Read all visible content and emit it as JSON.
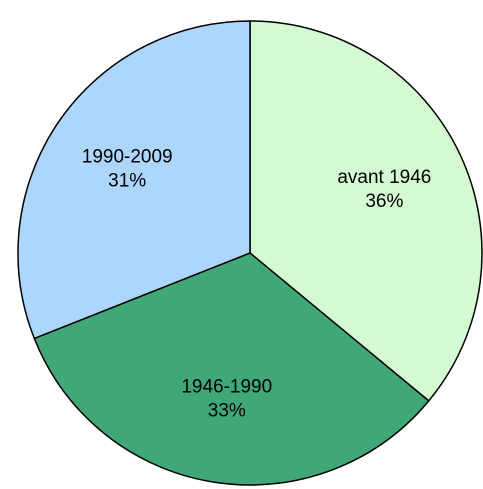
{
  "chart_data": {
    "type": "pie",
    "categories": [
      "avant 1946",
      "1946-1990",
      "1990-2009"
    ],
    "values": [
      36,
      33,
      31
    ],
    "value_labels": [
      "36%",
      "33%",
      "31%"
    ],
    "colors": [
      "#d4fad2",
      "#40a878",
      "#acd6fc"
    ]
  }
}
